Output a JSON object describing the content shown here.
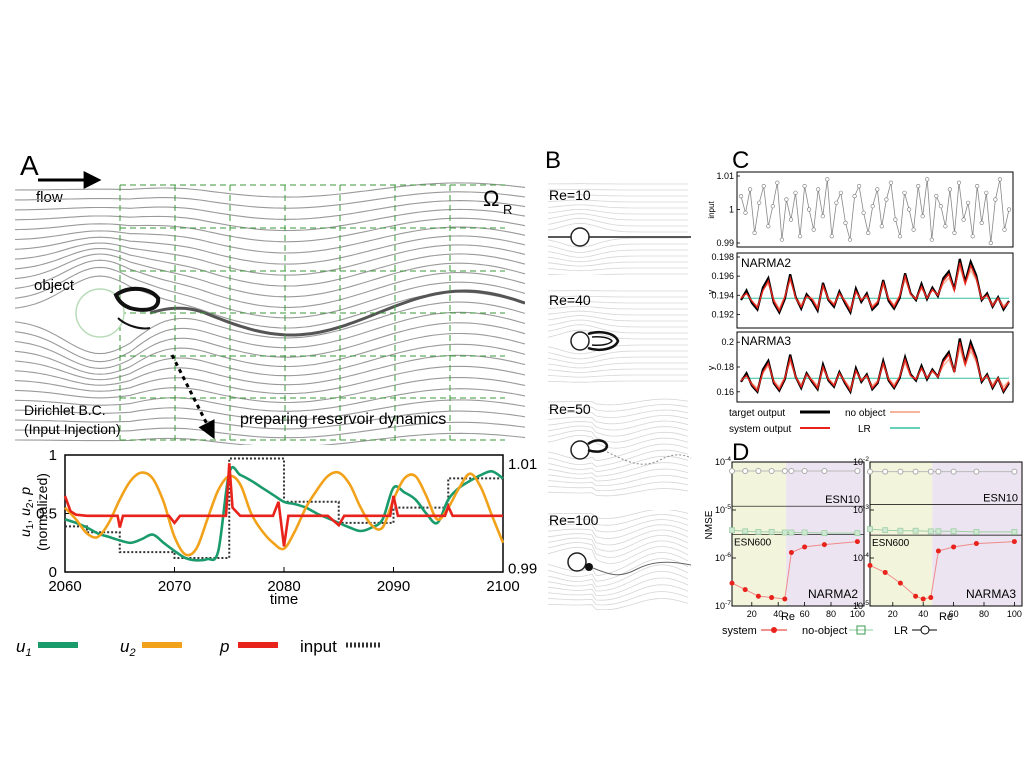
{
  "panelA": {
    "letter": "A",
    "flow_label": "flow",
    "omega_label": "Ω",
    "omega_sub": "R",
    "object_label": "object",
    "dirichlet_line1": "Dirichlet B.C.",
    "dirichlet_line2": "(Input Injection)",
    "reservoir_label": "preparing reservoir dynamics"
  },
  "panelB": {
    "letter": "B",
    "labels": [
      "Re=10",
      "Re=40",
      "Re=50",
      "Re=100"
    ]
  },
  "panelC": {
    "letter": "C",
    "input_ylabel": "input",
    "narma2_label": "NARMA2",
    "narma3_label": "NARMA3",
    "y_label": "y",
    "legend": {
      "target": "target output",
      "system": "system output",
      "no_object": "no object",
      "lr": "LR"
    }
  },
  "panelD": {
    "letter": "D",
    "ylabel": "NMSE",
    "xlabel": "Re",
    "left_tag": "NARMA2",
    "right_tag": "NARMA3",
    "esn10": "ESN10",
    "esn600": "ESN600",
    "legend": {
      "system": "system",
      "no_object": "no-object",
      "lr": "LR"
    }
  },
  "chart_data": [
    {
      "type": "line",
      "id": "timeseries-A",
      "xlabel": "time",
      "ylabel": "u1, u2, p (normalized)",
      "xlim": [
        2060,
        2100
      ],
      "ylim": [
        0,
        1
      ],
      "x_ticks": [
        "2060",
        "2070",
        "2080",
        "2090",
        "2100"
      ],
      "y_ticks": [
        "0",
        "0.5",
        "1"
      ],
      "right_ticks": [
        "0.99",
        "1.01"
      ],
      "legend": [
        "u1",
        "u2",
        "p",
        "input"
      ],
      "colors": {
        "u1": "#1a9b6c",
        "u2": "#f2a21a",
        "p": "#e8231c",
        "input": "#333333"
      },
      "input_steps": {
        "x": [
          2060,
          2062,
          2065,
          2070,
          2075,
          2080,
          2085,
          2090,
          2095,
          2100
        ],
        "y": [
          0.39,
          0.34,
          0.17,
          0.12,
          0.97,
          0.6,
          0.42,
          0.55,
          0.8,
          0.8
        ]
      },
      "series": [
        {
          "name": "u1",
          "x": [
            2060,
            2061,
            2062,
            2063,
            2064,
            2065,
            2066,
            2067,
            2068,
            2069,
            2070,
            2071,
            2072,
            2073,
            2074,
            2075,
            2076,
            2077,
            2078,
            2079,
            2080,
            2081,
            2082,
            2083,
            2084,
            2085,
            2086,
            2087,
            2088,
            2089,
            2090,
            2091,
            2092,
            2093,
            2094,
            2095,
            2096,
            2097,
            2098,
            2099,
            2100
          ],
          "y": [
            0.45,
            0.42,
            0.38,
            0.33,
            0.3,
            0.27,
            0.25,
            0.28,
            0.32,
            0.25,
            0.18,
            0.12,
            0.1,
            0.11,
            0.18,
            0.85,
            0.83,
            0.78,
            0.72,
            0.66,
            0.6,
            0.58,
            0.55,
            0.5,
            0.46,
            0.42,
            0.38,
            0.35,
            0.38,
            0.45,
            0.72,
            0.68,
            0.62,
            0.5,
            0.42,
            0.62,
            0.72,
            0.78,
            0.83,
            0.86,
            0.8
          ]
        },
        {
          "name": "u2",
          "x": [
            2060,
            2061,
            2062,
            2063,
            2064,
            2065,
            2066,
            2067,
            2068,
            2069,
            2070,
            2071,
            2072,
            2073,
            2074,
            2075,
            2076,
            2077,
            2078,
            2079,
            2080,
            2081,
            2082,
            2083,
            2084,
            2085,
            2086,
            2087,
            2088,
            2089,
            2090,
            2091,
            2092,
            2093,
            2094,
            2095,
            2096,
            2097,
            2098,
            2099,
            2100
          ],
          "y": [
            0.55,
            0.45,
            0.33,
            0.3,
            0.42,
            0.62,
            0.78,
            0.85,
            0.8,
            0.6,
            0.3,
            0.15,
            0.2,
            0.45,
            0.7,
            0.82,
            0.75,
            0.5,
            0.35,
            0.25,
            0.2,
            0.35,
            0.55,
            0.7,
            0.82,
            0.85,
            0.75,
            0.55,
            0.4,
            0.38,
            0.62,
            0.8,
            0.82,
            0.65,
            0.45,
            0.55,
            0.72,
            0.84,
            0.72,
            0.48,
            0.25
          ]
        },
        {
          "name": "p",
          "x": [
            2060,
            2060.5,
            2061,
            2062,
            2064,
            2064.8,
            2065,
            2065.3,
            2066,
            2069.5,
            2070,
            2070.5,
            2072,
            2074.7,
            2075,
            2075.3,
            2076,
            2079,
            2079.5,
            2080,
            2080.4,
            2081,
            2084,
            2085,
            2085.5,
            2087,
            2089.7,
            2090,
            2090.4,
            2091,
            2094.7,
            2095,
            2095.4,
            2096,
            2100
          ],
          "y": [
            0.65,
            0.52,
            0.49,
            0.48,
            0.48,
            0.48,
            0.38,
            0.48,
            0.48,
            0.48,
            0.42,
            0.48,
            0.48,
            0.48,
            0.93,
            0.55,
            0.48,
            0.48,
            0.6,
            0.22,
            0.48,
            0.48,
            0.48,
            0.4,
            0.48,
            0.48,
            0.48,
            0.65,
            0.48,
            0.48,
            0.48,
            0.56,
            0.48,
            0.48,
            0.48
          ]
        }
      ]
    },
    {
      "type": "line",
      "id": "input-C",
      "ylabel": "input",
      "ylim": [
        0.99,
        1.01
      ],
      "y_ticks": [
        "0.99",
        "1",
        "1.01"
      ],
      "series": [
        {
          "name": "input",
          "values": [
            1.004,
            0.999,
            1.006,
            0.993,
            1.002,
            1.007,
            0.995,
            1.001,
            1.008,
            0.991,
            1.003,
            0.997,
            1.005,
            0.992,
            1.007,
            1.0,
            0.994,
            1.006,
            0.998,
            1.009,
            0.992,
            1.002,
            1.005,
            0.996,
            0.991,
            1.004,
            1.007,
            0.999,
            0.993,
            1.001,
            1.006,
            0.995,
            1.003,
            1.008,
            0.997,
            0.992,
            1.005,
            1.0,
            0.994,
            1.007,
            0.998,
            1.009,
            0.991,
            1.004,
            1.001,
            0.995,
            1.006,
            0.993,
            1.008,
            0.997,
            1.002,
            0.992,
            1.007,
            0.996,
            1.005,
            0.99,
            1.003,
            1.009,
            0.994,
            1.0
          ]
        }
      ]
    },
    {
      "type": "line",
      "id": "narma2-C",
      "title": "NARMA2",
      "ylabel": "y",
      "ylim": [
        0.191,
        0.198
      ],
      "y_ticks": [
        "0.192",
        "0.194",
        "0.196",
        "0.198"
      ],
      "series": [
        {
          "name": "target output",
          "values": [
            0.1935,
            0.1945,
            0.1932,
            0.1925,
            0.1948,
            0.1958,
            0.1932,
            0.1922,
            0.1936,
            0.1962,
            0.1938,
            0.1926,
            0.1941,
            0.1934,
            0.1924,
            0.1953,
            0.1935,
            0.1928,
            0.1944,
            0.1932,
            0.1922,
            0.1947,
            0.1933,
            0.1942,
            0.1925,
            0.1931,
            0.1956,
            0.1934,
            0.1926,
            0.1937,
            0.1963,
            0.1942,
            0.1935,
            0.1952,
            0.1936,
            0.1948,
            0.1939,
            0.1958,
            0.1965,
            0.1946,
            0.1978,
            0.1954,
            0.1975,
            0.1961,
            0.1935,
            0.1942,
            0.1928,
            0.1938,
            0.1925,
            0.1934
          ]
        },
        {
          "name": "system output",
          "values": [
            0.1937,
            0.1942,
            0.1934,
            0.1927,
            0.1945,
            0.1955,
            0.1934,
            0.1924,
            0.1938,
            0.1958,
            0.1937,
            0.1928,
            0.1939,
            0.1936,
            0.1926,
            0.195,
            0.1936,
            0.193,
            0.1942,
            0.1934,
            0.1924,
            0.1944,
            0.1935,
            0.194,
            0.1927,
            0.1933,
            0.1953,
            0.1936,
            0.1928,
            0.1939,
            0.196,
            0.1941,
            0.1936,
            0.1949,
            0.1937,
            0.1946,
            0.194,
            0.1955,
            0.1962,
            0.1945,
            0.1974,
            0.1952,
            0.1971,
            0.1958,
            0.1936,
            0.194,
            0.1929,
            0.1937,
            0.1927,
            0.1933
          ]
        },
        {
          "name": "no object",
          "values": [
            0.1938,
            0.1943,
            0.1933,
            0.1929,
            0.1946,
            0.1952,
            0.1936,
            0.1926,
            0.1939,
            0.1956,
            0.1939,
            0.193,
            0.194,
            0.1937,
            0.1928,
            0.1948,
            0.1937,
            0.1931,
            0.1941,
            0.1935,
            0.1926,
            0.1943,
            0.1936,
            0.1939,
            0.1929,
            0.1934,
            0.195,
            0.1937,
            0.193,
            0.194,
            0.1956,
            0.1942,
            0.1937,
            0.1947,
            0.1938,
            0.1945,
            0.1941,
            0.1952,
            0.1958,
            0.1946,
            0.1969,
            0.1952,
            0.1966,
            0.1956,
            0.1938,
            0.1941,
            0.1931,
            0.1938,
            0.1929,
            0.1934
          ]
        },
        {
          "name": "LR",
          "values": [
            0.1937,
            0.1937
          ]
        }
      ]
    },
    {
      "type": "line",
      "id": "narma3-C",
      "title": "NARMA3",
      "ylabel": "y",
      "ylim": [
        0.155,
        0.205
      ],
      "y_ticks": [
        "0.16",
        "0.18",
        "0.2"
      ],
      "series": [
        {
          "name": "target output",
          "values": [
            0.168,
            0.175,
            0.165,
            0.16,
            0.178,
            0.185,
            0.167,
            0.161,
            0.17,
            0.19,
            0.172,
            0.163,
            0.175,
            0.168,
            0.162,
            0.182,
            0.169,
            0.164,
            0.176,
            0.167,
            0.16,
            0.179,
            0.168,
            0.174,
            0.162,
            0.167,
            0.185,
            0.169,
            0.163,
            0.171,
            0.188,
            0.174,
            0.169,
            0.181,
            0.17,
            0.178,
            0.172,
            0.186,
            0.192,
            0.176,
            0.203,
            0.183,
            0.2,
            0.188,
            0.168,
            0.174,
            0.163,
            0.171,
            0.16,
            0.167
          ]
        },
        {
          "name": "system output",
          "values": [
            0.169,
            0.173,
            0.166,
            0.161,
            0.176,
            0.183,
            0.168,
            0.162,
            0.171,
            0.187,
            0.172,
            0.164,
            0.174,
            0.169,
            0.163,
            0.18,
            0.17,
            0.165,
            0.175,
            0.168,
            0.161,
            0.177,
            0.169,
            0.173,
            0.163,
            0.168,
            0.183,
            0.17,
            0.164,
            0.172,
            0.186,
            0.173,
            0.17,
            0.179,
            0.171,
            0.177,
            0.172,
            0.184,
            0.19,
            0.176,
            0.2,
            0.182,
            0.197,
            0.186,
            0.169,
            0.173,
            0.164,
            0.171,
            0.161,
            0.168
          ]
        },
        {
          "name": "no object",
          "values": [
            0.17,
            0.174,
            0.167,
            0.163,
            0.175,
            0.181,
            0.169,
            0.164,
            0.172,
            0.184,
            0.172,
            0.166,
            0.174,
            0.17,
            0.165,
            0.178,
            0.171,
            0.166,
            0.175,
            0.169,
            0.163,
            0.176,
            0.17,
            0.173,
            0.165,
            0.169,
            0.181,
            0.171,
            0.166,
            0.172,
            0.183,
            0.173,
            0.171,
            0.178,
            0.172,
            0.176,
            0.173,
            0.181,
            0.186,
            0.176,
            0.195,
            0.181,
            0.193,
            0.184,
            0.17,
            0.173,
            0.166,
            0.172,
            0.164,
            0.169
          ]
        },
        {
          "name": "LR",
          "values": [
            0.171,
            0.171
          ]
        }
      ]
    },
    {
      "type": "line",
      "id": "nmse-narma2-D",
      "title": "NARMA2",
      "xlabel": "Re",
      "ylabel": "NMSE",
      "yscale": "log",
      "ylim_exp": [
        -7,
        -4
      ],
      "y_ticks": [
        "10-4",
        "10-5",
        "10-6",
        "10-7"
      ],
      "x_ticks": [
        "20",
        "40",
        "60",
        "80",
        "100"
      ],
      "xlim": [
        5,
        105
      ],
      "shaded_regions": [
        {
          "from": 5,
          "to": 46,
          "color": "#f2f5dc"
        },
        {
          "from": 46,
          "to": 105,
          "color": "#ece4f1"
        }
      ],
      "series": [
        {
          "name": "system",
          "x": [
            5,
            15,
            25,
            35,
            45,
            50,
            60,
            75,
            100
          ],
          "y": [
            3e-07,
            2.2e-07,
            1.6e-07,
            1.5e-07,
            1.4e-07,
            1.3e-06,
            1.7e-06,
            1.9e-06,
            2.2e-06
          ]
        },
        {
          "name": "no-object",
          "x": [
            5,
            15,
            25,
            35,
            45,
            50,
            60,
            75,
            100
          ],
          "y": [
            3.8e-06,
            3.6e-06,
            3.5e-06,
            3.5e-06,
            3.4e-06,
            3.4e-06,
            3.4e-06,
            3.3e-06,
            3.3e-06
          ]
        },
        {
          "name": "LR",
          "x": [
            5,
            15,
            25,
            35,
            45,
            50,
            60,
            75,
            100
          ],
          "y": [
            6.5e-05,
            6.5e-05,
            6.5e-05,
            6.5e-05,
            6.5e-05,
            6.5e-05,
            6.5e-05,
            6.5e-05,
            6.5e-05
          ]
        },
        {
          "name": "ESN10",
          "x": [
            5,
            105
          ],
          "y": [
            1.2e-05,
            1.2e-05
          ]
        },
        {
          "name": "ESN600",
          "x": [
            5,
            105
          ],
          "y": [
            3.1e-06,
            3.1e-06
          ]
        }
      ]
    },
    {
      "type": "line",
      "id": "nmse-narma3-D",
      "title": "NARMA3",
      "xlabel": "Re",
      "yscale": "log",
      "ylim_exp": [
        -5,
        -2
      ],
      "y_ticks": [
        "10-2",
        "10-3",
        "10-4",
        "10-5"
      ],
      "x_ticks": [
        "20",
        "40",
        "60",
        "80",
        "100"
      ],
      "xlim": [
        5,
        105
      ],
      "shaded_regions": [
        {
          "from": 5,
          "to": 46,
          "color": "#f2f5dc"
        },
        {
          "from": 46,
          "to": 105,
          "color": "#ece4f1"
        }
      ],
      "series": [
        {
          "name": "system",
          "x": [
            5,
            15,
            25,
            35,
            40,
            45,
            50,
            60,
            75,
            100
          ],
          "y": [
            7e-05,
            5e-05,
            3e-05,
            1.6e-05,
            1.4e-05,
            1.5e-05,
            0.00014,
            0.00017,
            0.0002,
            0.00022
          ]
        },
        {
          "name": "no-object",
          "x": [
            5,
            15,
            25,
            35,
            45,
            50,
            60,
            75,
            100
          ],
          "y": [
            0.0004,
            0.00038,
            0.00037,
            0.00037,
            0.00036,
            0.00036,
            0.00036,
            0.00035,
            0.00035
          ]
        },
        {
          "name": "LR",
          "x": [
            5,
            15,
            25,
            35,
            45,
            50,
            60,
            75,
            100
          ],
          "y": [
            0.0063,
            0.0063,
            0.0063,
            0.0063,
            0.0063,
            0.0063,
            0.0063,
            0.0063,
            0.0063
          ]
        },
        {
          "name": "ESN10",
          "x": [
            5,
            105
          ],
          "y": [
            0.0013,
            0.0013
          ]
        },
        {
          "name": "ESN600",
          "x": [
            5,
            105
          ],
          "y": [
            0.0003,
            0.0003
          ]
        }
      ]
    }
  ]
}
